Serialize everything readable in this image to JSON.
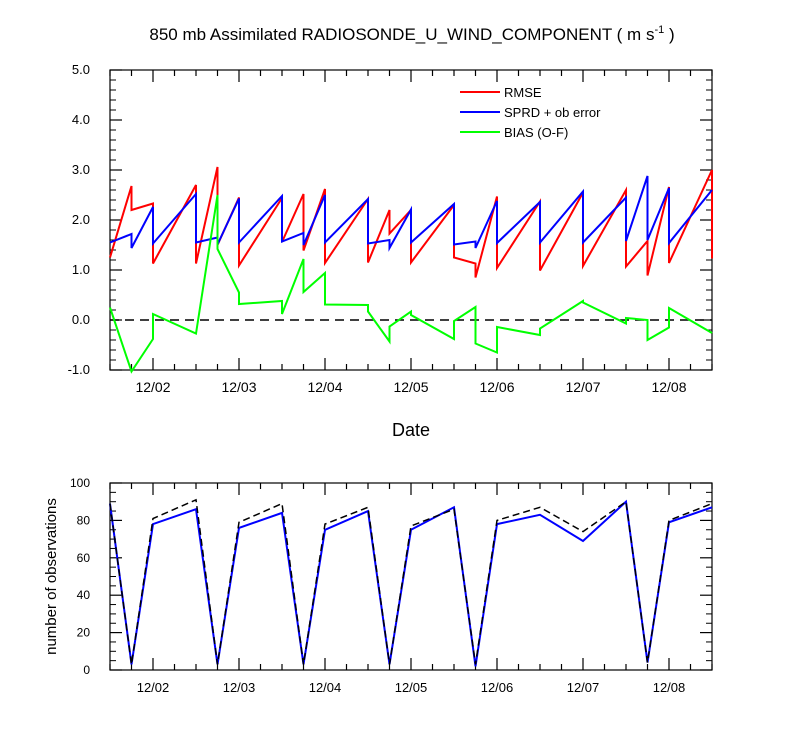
{
  "title": "850 mb Assimilated RADIOSONDE_U_WIND_COMPONENT ( m s",
  "title_sup": "-1",
  "title_end": " )",
  "colors": {
    "rmse": "#ff0000",
    "sprd": "#0000ff",
    "bias": "#00ff00",
    "axis": "#000000"
  },
  "chart_data": [
    {
      "type": "line",
      "xlabel": "Date",
      "ylabel": "",
      "ylim": [
        -1.0,
        5.0
      ],
      "yticks": [
        -1.0,
        0.0,
        1.0,
        2.0,
        3.0,
        4.0,
        5.0
      ],
      "ytick_labels": [
        "-1.0",
        "0.0",
        "1.0",
        "2.0",
        "3.0",
        "4.0",
        "5.0"
      ],
      "xlim": [
        1.5,
        8.5
      ],
      "xticks": [
        2,
        3,
        4,
        5,
        6,
        7,
        8
      ],
      "xtick_labels": [
        "12/02",
        "12/03",
        "12/04",
        "12/05",
        "12/06",
        "12/07",
        "12/08"
      ],
      "reference_line": 0.0,
      "legend_position": "top-right",
      "series": [
        {
          "name": "RMSE",
          "color": "#ff0000",
          "x": [
            1.5,
            1.75,
            1.75,
            2.0,
            2.0,
            2.5,
            2.5,
            2.75,
            2.75,
            3.0,
            3.0,
            3.5,
            3.5,
            3.75,
            3.75,
            4.0,
            4.0,
            4.5,
            4.5,
            4.75,
            4.75,
            5.0,
            5.0,
            5.5,
            5.5,
            5.75,
            5.75,
            6.0,
            6.0,
            6.5,
            6.5,
            7.0,
            7.0,
            7.5,
            7.5,
            7.75,
            7.75,
            8.0,
            8.0,
            8.5,
            8.5
          ],
          "y": [
            1.25,
            2.68,
            2.2,
            2.33,
            1.13,
            2.7,
            1.13,
            3.06,
            1.5,
            2.45,
            1.09,
            2.44,
            1.56,
            2.52,
            1.39,
            2.62,
            1.14,
            2.42,
            1.15,
            2.2,
            1.73,
            2.2,
            1.15,
            2.3,
            1.25,
            1.13,
            0.85,
            2.47,
            1.04,
            2.37,
            0.99,
            2.55,
            1.08,
            2.6,
            1.07,
            1.58,
            0.89,
            2.66,
            1.14,
            3.0,
            1.23
          ]
        },
        {
          "name": "SPRD + ob error",
          "color": "#0000ff",
          "x": [
            1.5,
            1.75,
            1.75,
            2.0,
            2.0,
            2.5,
            2.5,
            2.75,
            2.75,
            3.0,
            3.0,
            3.5,
            3.5,
            3.75,
            3.75,
            4.0,
            4.0,
            4.5,
            4.5,
            4.75,
            4.75,
            5.0,
            5.0,
            5.5,
            5.5,
            5.75,
            5.75,
            6.0,
            6.0,
            6.5,
            6.5,
            7.0,
            7.0,
            7.5,
            7.5,
            7.75,
            7.75,
            8.0,
            8.0,
            8.5
          ],
          "y": [
            1.55,
            1.72,
            1.44,
            2.26,
            1.53,
            2.52,
            1.55,
            1.65,
            1.51,
            2.43,
            1.55,
            2.48,
            1.57,
            1.74,
            1.5,
            2.5,
            1.55,
            2.42,
            1.53,
            1.6,
            1.44,
            2.21,
            1.55,
            2.32,
            1.51,
            1.57,
            1.44,
            2.38,
            1.54,
            2.36,
            1.55,
            2.57,
            1.55,
            2.45,
            1.58,
            2.88,
            1.6,
            2.64,
            1.54,
            2.6
          ]
        },
        {
          "name": "BIAS (O-F)",
          "color": "#00ff00",
          "x": [
            1.5,
            1.75,
            2.0,
            2.0,
            2.5,
            2.75,
            2.75,
            3.0,
            3.0,
            3.5,
            3.5,
            3.75,
            3.75,
            4.0,
            4.0,
            4.5,
            4.5,
            4.75,
            4.75,
            5.0,
            5.0,
            5.5,
            5.5,
            5.75,
            5.75,
            6.0,
            6.0,
            6.5,
            6.5,
            7.0,
            7.0,
            7.5,
            7.5,
            7.75,
            7.75,
            8.0,
            8.0,
            8.5
          ],
          "y": [
            0.25,
            -1.03,
            -0.38,
            0.12,
            -0.27,
            2.5,
            1.42,
            0.55,
            0.32,
            0.38,
            0.12,
            1.22,
            0.56,
            0.94,
            0.31,
            0.3,
            0.17,
            -0.43,
            -0.13,
            0.17,
            0.1,
            -0.38,
            -0.02,
            0.26,
            -0.47,
            -0.65,
            -0.14,
            -0.3,
            -0.17,
            0.38,
            0.35,
            -0.07,
            0.04,
            0.0,
            -0.4,
            -0.15,
            0.24,
            -0.26
          ]
        }
      ]
    },
    {
      "type": "line",
      "xlabel": "",
      "ylabel": "number of observations",
      "ylim": [
        0,
        100
      ],
      "yticks": [
        0,
        20,
        40,
        60,
        80,
        100
      ],
      "ytick_labels": [
        "0",
        "20",
        "40",
        "60",
        "80",
        "100"
      ],
      "xlim": [
        1.5,
        8.5
      ],
      "xticks": [
        2,
        3,
        4,
        5,
        6,
        7,
        8
      ],
      "xtick_labels": [
        "12/02",
        "12/03",
        "12/04",
        "12/05",
        "12/06",
        "12/07",
        "12/08"
      ],
      "series": [
        {
          "style": "solid",
          "color": "#0000ff",
          "x": [
            1.5,
            1.75,
            2.0,
            2.5,
            2.75,
            3.0,
            3.5,
            3.75,
            4.0,
            4.5,
            4.75,
            5.0,
            5.5,
            5.75,
            6.0,
            6.5,
            7.0,
            7.5,
            7.75,
            8.0,
            8.5
          ],
          "y": [
            89,
            3,
            78,
            86,
            3,
            76,
            84,
            3,
            75,
            85,
            3,
            75,
            87,
            2,
            78,
            83,
            69,
            90,
            4,
            79,
            87
          ]
        },
        {
          "style": "dashed",
          "color": "#000000",
          "x": [
            1.5,
            1.75,
            2.0,
            2.5,
            2.75,
            3.0,
            3.5,
            3.75,
            4.0,
            4.5,
            4.75,
            5.0,
            5.5,
            5.75,
            6.0,
            6.5,
            7.0,
            7.5,
            7.75,
            8.0,
            8.5
          ],
          "y": [
            89,
            3,
            81,
            91,
            3,
            79,
            89,
            3,
            78,
            87,
            3,
            77,
            86,
            3,
            80,
            87,
            74,
            90,
            4,
            80,
            89
          ]
        }
      ]
    }
  ]
}
